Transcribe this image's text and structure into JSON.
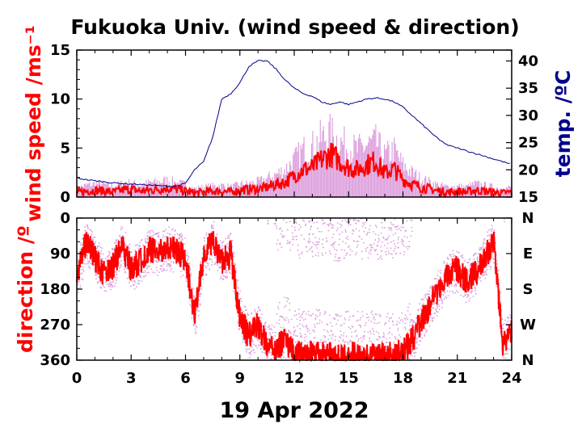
{
  "chart_data": [
    {
      "type": "line",
      "panel": "wind-speed",
      "title": "Fukuoka Univ. (wind speed & direction)",
      "ylabel_left": "wind speed /ms⁻¹",
      "ylabel_right": "temp. /ºC",
      "xlim": [
        0,
        24
      ],
      "ylim_left": [
        0,
        15
      ],
      "ylim_right": [
        15,
        42
      ],
      "yticks_left": [
        "0",
        "5",
        "10",
        "15"
      ],
      "yticks_right": [
        "15",
        "20",
        "25",
        "30",
        "35",
        "40"
      ],
      "grid": false,
      "colors": {
        "wind": "#ff0000",
        "gust": "#dda0dd",
        "temp": "#00008b"
      },
      "series": [
        {
          "key": "wind_mean",
          "x": [
            0,
            0.5,
            1,
            1.5,
            2,
            2.5,
            3,
            3.5,
            4,
            4.5,
            5,
            5.5,
            6,
            6.5,
            7,
            7.5,
            8,
            8.5,
            9,
            9.5,
            10,
            10.5,
            11,
            11.5,
            12,
            12.5,
            13,
            13.5,
            14,
            14.5,
            15,
            15.5,
            16,
            16.5,
            17,
            17.5,
            18,
            18.5,
            19,
            19.5,
            20,
            20.5,
            21,
            21.5,
            22,
            22.5,
            23,
            23.5,
            24
          ],
          "y": [
            0.4,
            0.6,
            0.7,
            0.6,
            0.5,
            0.7,
            0.8,
            0.6,
            0.7,
            0.8,
            0.9,
            0.8,
            0.6,
            0.4,
            0.5,
            0.6,
            0.6,
            0.5,
            0.7,
            0.8,
            0.8,
            1.0,
            1.3,
            1.5,
            2.2,
            2.8,
            3.0,
            3.8,
            4.4,
            3.7,
            3.0,
            2.8,
            3.3,
            3.7,
            2.4,
            2.9,
            1.8,
            1.3,
            1.0,
            0.8,
            0.6,
            0.5,
            0.6,
            0.5,
            0.7,
            0.6,
            0.5,
            0.4,
            0.5
          ]
        },
        {
          "key": "wind_gust",
          "x": [
            0,
            0.5,
            1,
            1.5,
            2,
            2.5,
            3,
            3.5,
            4,
            4.5,
            5,
            5.5,
            6,
            6.5,
            7,
            7.5,
            8,
            8.5,
            9,
            9.5,
            10,
            10.5,
            11,
            11.5,
            12,
            12.5,
            13,
            13.5,
            14,
            14.5,
            15,
            15.5,
            16,
            16.5,
            17,
            17.5,
            18,
            18.5,
            19,
            19.5,
            20,
            20.5,
            21,
            21.5,
            22,
            22.5,
            23,
            23.5,
            24
          ],
          "y": [
            1.0,
            1.4,
            1.6,
            1.5,
            1.3,
            1.6,
            1.7,
            1.4,
            1.7,
            1.8,
            2.0,
            1.7,
            1.5,
            1.0,
            1.2,
            1.3,
            1.4,
            1.2,
            1.5,
            1.6,
            1.8,
            2.2,
            2.7,
            3.3,
            4.4,
            5.6,
            6.0,
            7.0,
            7.5,
            6.6,
            6.0,
            5.6,
            6.2,
            6.5,
            4.9,
            5.6,
            3.8,
            2.9,
            2.2,
            1.8,
            1.4,
            1.2,
            1.3,
            1.2,
            1.6,
            1.4,
            1.2,
            1.0,
            1.2
          ]
        },
        {
          "key": "temperature",
          "x": [
            0,
            0.5,
            1,
            1.5,
            2,
            2.5,
            3,
            3.5,
            4,
            4.5,
            5,
            5.5,
            6,
            6.5,
            7,
            7.5,
            8,
            8.5,
            9,
            9.5,
            10,
            10.5,
            11,
            11.5,
            12,
            12.5,
            13,
            13.5,
            14,
            14.5,
            15,
            15.5,
            16,
            16.5,
            17,
            17.5,
            18,
            18.5,
            19,
            19.5,
            20,
            20.5,
            21,
            21.5,
            22,
            22.5,
            23,
            23.5,
            24
          ],
          "y": [
            18.5,
            18.2,
            18.0,
            17.8,
            17.6,
            17.5,
            17.4,
            17.3,
            17.2,
            17.1,
            17.0,
            17.0,
            17.5,
            20.0,
            21.5,
            26.0,
            33.0,
            34.0,
            36.0,
            39.0,
            40.0,
            40.0,
            38.5,
            36.5,
            35.0,
            34.0,
            33.5,
            32.5,
            32.0,
            32.5,
            32.0,
            32.5,
            33.0,
            33.2,
            33.0,
            32.5,
            31.5,
            30.0,
            28.5,
            27.0,
            25.5,
            24.5,
            24.0,
            23.5,
            23.0,
            22.5,
            22.0,
            21.5,
            21.0
          ]
        }
      ]
    },
    {
      "type": "scatter",
      "panel": "wind-direction",
      "ylabel": "direction /º",
      "xlabel": "19 Apr 2022",
      "xlim": [
        0,
        24
      ],
      "ylim": [
        0,
        360
      ],
      "xticks": [
        "0",
        "3",
        "6",
        "9",
        "12",
        "15",
        "18",
        "21",
        "24"
      ],
      "yticks_left": [
        "0",
        "90",
        "180",
        "270",
        "360"
      ],
      "yticks_right": [
        "N",
        "E",
        "S",
        "W",
        "N"
      ],
      "grid": false,
      "colors": {
        "direction": "#ff0000",
        "scatter": "#dda0dd"
      },
      "series": [
        {
          "key": "direction",
          "x": [
            0,
            0.5,
            1,
            1.5,
            2,
            2.5,
            3,
            3.5,
            4,
            4.5,
            5,
            5.5,
            6,
            6.5,
            7,
            7.5,
            8,
            8.5,
            9,
            9.5,
            10,
            10.5,
            11,
            11.5,
            12,
            12.5,
            13,
            13.5,
            14,
            14.5,
            15,
            15.5,
            16,
            16.5,
            17,
            17.5,
            18,
            18.5,
            19,
            19.5,
            20,
            20.5,
            21,
            21.5,
            22,
            22.5,
            23,
            23.5,
            24
          ],
          "y": [
            150,
            60,
            100,
            140,
            120,
            70,
            130,
            110,
            80,
            90,
            75,
            85,
            100,
            250,
            100,
            60,
            110,
            90,
            250,
            300,
            270,
            320,
            330,
            310,
            340,
            350,
            345,
            340,
            350,
            355,
            345,
            350,
            345,
            350,
            350,
            345,
            340,
            310,
            260,
            220,
            180,
            140,
            130,
            160,
            140,
            100,
            60,
            320,
            280
          ]
        }
      ]
    }
  ]
}
